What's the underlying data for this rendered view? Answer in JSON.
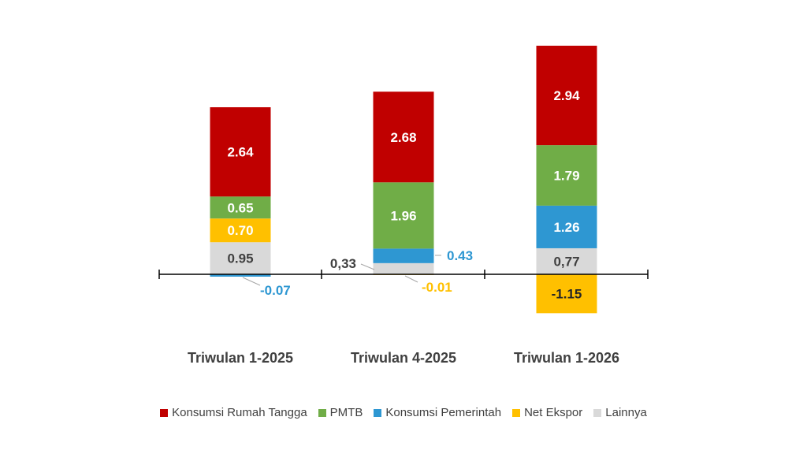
{
  "chart_data": {
    "type": "bar",
    "stacked": true,
    "categories": [
      "Triwulan 1-2025",
      "Triwulan 4-2025",
      "Triwulan 1-2026"
    ],
    "series": [
      {
        "name": "Konsumsi Rumah Tangga",
        "color": "#C00000",
        "values": [
          2.64,
          2.68,
          2.94
        ],
        "labels": [
          "2.64",
          "2.68",
          "2.94"
        ]
      },
      {
        "name": "PMTB",
        "color": "#70AD47",
        "values": [
          0.65,
          1.96,
          1.79
        ],
        "labels": [
          "0.65",
          "1.96",
          "1.79"
        ]
      },
      {
        "name": "Konsumsi Pemerintah",
        "color": "#2E97D2",
        "values": [
          -0.07,
          0.43,
          1.26
        ],
        "labels": [
          "-0.07",
          "0.43",
          "1.26"
        ]
      },
      {
        "name": "Net Ekspor",
        "color": "#FFC000",
        "values": [
          0.7,
          -0.01,
          -1.15
        ],
        "labels": [
          "0.70",
          "-0.01",
          "-1.15"
        ]
      },
      {
        "name": "Lainnya",
        "color": "#D9D9D9",
        "values": [
          0.95,
          0.33,
          0.77
        ],
        "labels": [
          "0.95",
          "0,33",
          "0,77"
        ]
      }
    ],
    "ylim": [
      -1.15,
      6.76
    ],
    "grid": false,
    "legend": "bottom"
  }
}
